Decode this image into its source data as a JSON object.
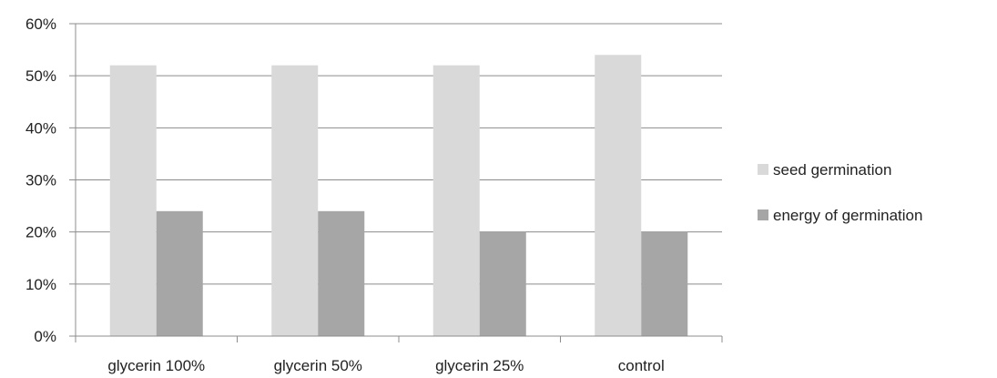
{
  "chart_data": {
    "type": "bar",
    "categories": [
      "glycerin 100%",
      "glycerin 50%",
      "glycerin 25%",
      "control"
    ],
    "series": [
      {
        "name": "seed germination",
        "values": [
          52,
          52,
          52,
          54
        ],
        "color": "#d9d9d9"
      },
      {
        "name": "energy of germination",
        "values": [
          24,
          24,
          20,
          20
        ],
        "color": "#a6a6a6"
      }
    ],
    "ylim": [
      0,
      60
    ],
    "yticks": [
      0,
      10,
      20,
      30,
      40,
      50,
      60
    ],
    "ytick_labels": [
      "0%",
      "10%",
      "20%",
      "30%",
      "40%",
      "50%",
      "60%"
    ],
    "grid": true,
    "legend_position": "right"
  }
}
